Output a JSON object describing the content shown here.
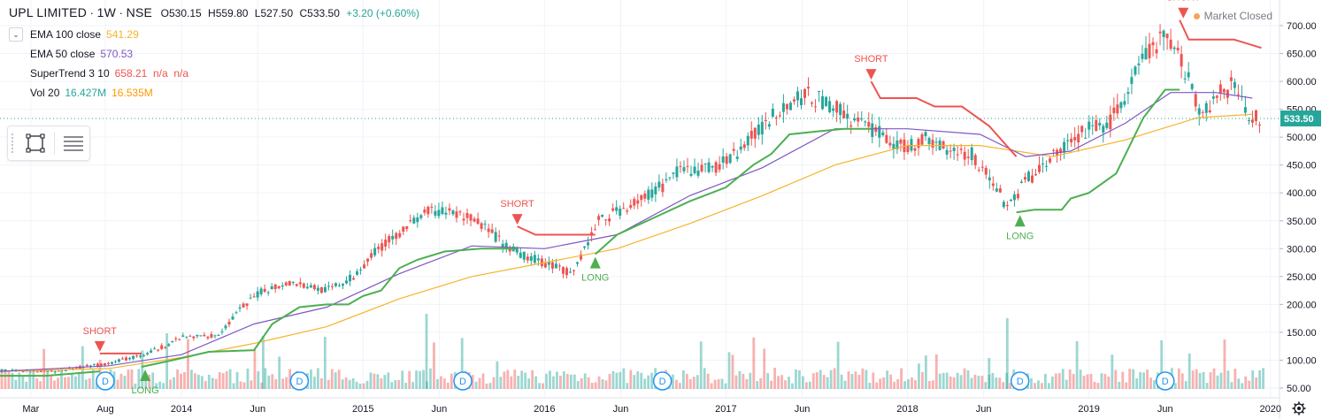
{
  "header": {
    "symbol": "UPL LIMITED",
    "sep1": "·",
    "interval": "1W",
    "sep2": "·",
    "exchange": "NSE",
    "open": "O530.15",
    "high": "H559.80",
    "low": "L527.50",
    "close": "C533.50",
    "change": "+3.20 (+0.60%)"
  },
  "status": {
    "text": "Market Closed",
    "icon": "market-closed-dot-icon"
  },
  "legend": [
    {
      "name": "EMA 100 close",
      "value": "541.29",
      "value_color": "#f7b32b"
    },
    {
      "name": "EMA 50 close",
      "value": "570.53",
      "value_color": "#7e57c2"
    },
    {
      "name": "SuperTrend 3 10",
      "value": "658.21  n/a  n/a",
      "value_color": "#ef5350"
    },
    {
      "name": "Vol 20",
      "value": "16.427M",
      "value2": "16.535M",
      "value_color": "#26a69a",
      "value2_color": "#ff9800"
    }
  ],
  "toolbox": {
    "rect_tool": "rectangle-tool-icon",
    "lines_tool": "horizontal-lines-icon",
    "collapse": "chevron-down-icon"
  },
  "colors": {
    "up": "#26a69a",
    "down": "#ef5350",
    "ema100": "#f7b32b",
    "ema50": "#7e57c2",
    "st_up": "#4caf50",
    "st_down": "#ef5350"
  },
  "chart_data": {
    "type": "line",
    "title": "UPL LIMITED · 1W · NSE",
    "ylim": [
      0,
      720
    ],
    "y_ticks": [
      "700.00",
      "650.00",
      "600.00",
      "550.00",
      "500.00",
      "450.00",
      "400.00",
      "350.00",
      "300.00",
      "250.00",
      "200.00",
      "150.00",
      "100.00",
      "50.00"
    ],
    "y_tick_values": [
      700,
      650,
      600,
      550,
      500,
      450,
      400,
      350,
      300,
      250,
      200,
      150,
      100,
      50
    ],
    "x_ticks": [
      "Mar",
      "Aug",
      "2014",
      "Jun",
      "2015",
      "Jun",
      "2016",
      "Jun",
      "2017",
      "Jun",
      "2018",
      "Jun",
      "2019",
      "Jun",
      "2020"
    ],
    "x_tick_dates": [
      2013.17,
      2013.58,
      2014.0,
      2014.42,
      2015.0,
      2015.42,
      2016.0,
      2016.42,
      2017.0,
      2017.42,
      2018.0,
      2018.42,
      2019.0,
      2019.42,
      2020.0
    ],
    "last_price": "533.50",
    "price_points": {
      "date": [
        2013.0,
        2013.3,
        2013.6,
        2013.8,
        2014.0,
        2014.2,
        2014.35,
        2014.45,
        2014.6,
        2014.8,
        2014.95,
        2015.05,
        2015.2,
        2015.35,
        2015.5,
        2015.65,
        2015.8,
        2015.95,
        2016.05,
        2016.15,
        2016.3,
        2016.45,
        2016.6,
        2016.75,
        2016.9,
        2017.0,
        2017.15,
        2017.3,
        2017.45,
        2017.6,
        2017.75,
        2017.85,
        2017.95,
        2018.1,
        2018.25,
        2018.35,
        2018.45,
        2018.55,
        2018.65,
        2018.8,
        2019.0,
        2019.1,
        2019.2,
        2019.3,
        2019.42,
        2019.5,
        2019.55,
        2019.62,
        2019.7,
        2019.8,
        2019.9
      ],
      "close": [
        82,
        80,
        95,
        110,
        140,
        145,
        200,
        225,
        240,
        225,
        250,
        290,
        330,
        365,
        365,
        345,
        300,
        280,
        270,
        255,
        350,
        375,
        400,
        440,
        445,
        455,
        500,
        555,
        575,
        555,
        520,
        510,
        480,
        495,
        480,
        470,
        430,
        375,
        420,
        465,
        515,
        520,
        570,
        640,
        680,
        640,
        610,
        540,
        575,
        595,
        533
      ]
    },
    "series": [
      {
        "name": "EMA 100 close",
        "x": [
          2013.0,
          2013.6,
          2014.0,
          2014.4,
          2014.8,
          2015.2,
          2015.6,
          2016.0,
          2016.4,
          2016.8,
          2017.2,
          2017.6,
          2018.0,
          2018.4,
          2018.8,
          2019.2,
          2019.6,
          2019.9
        ],
        "y": [
          80,
          85,
          105,
          130,
          160,
          210,
          250,
          275,
          300,
          345,
          395,
          450,
          485,
          485,
          465,
          495,
          535,
          541
        ]
      },
      {
        "name": "EMA 50 close",
        "x": [
          2013.0,
          2013.6,
          2014.0,
          2014.4,
          2014.8,
          2015.2,
          2015.6,
          2016.0,
          2016.4,
          2016.8,
          2017.2,
          2017.6,
          2018.0,
          2018.4,
          2018.65,
          2018.9,
          2019.2,
          2019.45,
          2019.7,
          2019.9
        ],
        "y": [
          80,
          90,
          110,
          165,
          195,
          255,
          305,
          300,
          325,
          395,
          445,
          515,
          515,
          505,
          465,
          475,
          525,
          580,
          580,
          570
        ]
      }
    ],
    "supertrend": [
      {
        "trend": "up",
        "x": [
          2013.0,
          2013.25,
          2013.55
        ],
        "y": [
          72,
          72,
          80
        ]
      },
      {
        "trend": "down",
        "x": [
          2013.55,
          2013.78
        ],
        "y": [
          112,
          112
        ]
      },
      {
        "trend": "up",
        "x": [
          2013.78,
          2013.95,
          2014.15,
          2014.4,
          2014.5,
          2014.65,
          2014.8,
          2014.92,
          2015.0,
          2015.1,
          2015.2,
          2015.3,
          2015.45,
          2015.65,
          2015.85
        ],
        "y": [
          88,
          100,
          115,
          118,
          165,
          195,
          200,
          200,
          215,
          225,
          265,
          280,
          295,
          300,
          300
        ]
      },
      {
        "trend": "down",
        "x": [
          2015.85,
          2015.95,
          2016.1,
          2016.28
        ],
        "y": [
          340,
          325,
          325,
          325
        ]
      },
      {
        "trend": "up",
        "x": [
          2016.28,
          2016.4,
          2016.6,
          2016.8,
          2017.0,
          2017.15,
          2017.25,
          2017.35,
          2017.5,
          2017.65,
          2017.8
        ],
        "y": [
          290,
          325,
          355,
          385,
          410,
          450,
          470,
          505,
          510,
          515,
          515
        ]
      },
      {
        "trend": "down",
        "x": [
          2017.8,
          2017.85,
          2018.05,
          2018.15,
          2018.3,
          2018.45,
          2018.6
        ],
        "y": [
          600,
          570,
          570,
          555,
          555,
          520,
          465
        ]
      },
      {
        "trend": "up",
        "x": [
          2018.6,
          2018.7,
          2018.85,
          2018.9,
          2019.0,
          2019.15,
          2019.3,
          2019.42,
          2019.5
        ],
        "y": [
          365,
          370,
          370,
          390,
          400,
          435,
          535,
          585,
          585
        ]
      },
      {
        "trend": "down",
        "x": [
          2019.5,
          2019.55,
          2019.65,
          2019.8,
          2019.95
        ],
        "y": [
          710,
          675,
          675,
          675,
          660
        ]
      }
    ],
    "signals": [
      {
        "label": "SHORT",
        "type": "short",
        "x": 2013.55,
        "y": 112
      },
      {
        "label": "LONG",
        "type": "long",
        "x": 2013.8,
        "y": 88
      },
      {
        "label": "SHORT",
        "type": "short",
        "x": 2015.85,
        "y": 340
      },
      {
        "label": "LONG",
        "type": "long",
        "x": 2016.28,
        "y": 290
      },
      {
        "label": "SHORT",
        "type": "short",
        "x": 2017.8,
        "y": 600
      },
      {
        "label": "LONG",
        "type": "long",
        "x": 2018.62,
        "y": 365
      },
      {
        "label": "SHORT",
        "type": "short",
        "x": 2019.52,
        "y": 710
      }
    ],
    "events": [
      {
        "label": "D",
        "x": 2013.58
      },
      {
        "label": "D",
        "x": 2014.65
      },
      {
        "label": "D",
        "x": 2015.55
      },
      {
        "label": "D",
        "x": 2016.65
      },
      {
        "label": "D",
        "x": 2018.62
      },
      {
        "label": "D",
        "x": 2019.42
      }
    ]
  }
}
